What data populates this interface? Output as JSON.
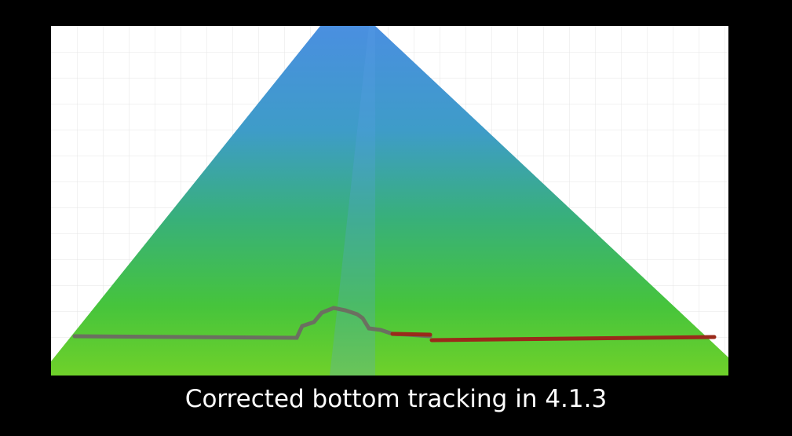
{
  "caption": "Corrected bottom tracking in 4.1.3"
}
